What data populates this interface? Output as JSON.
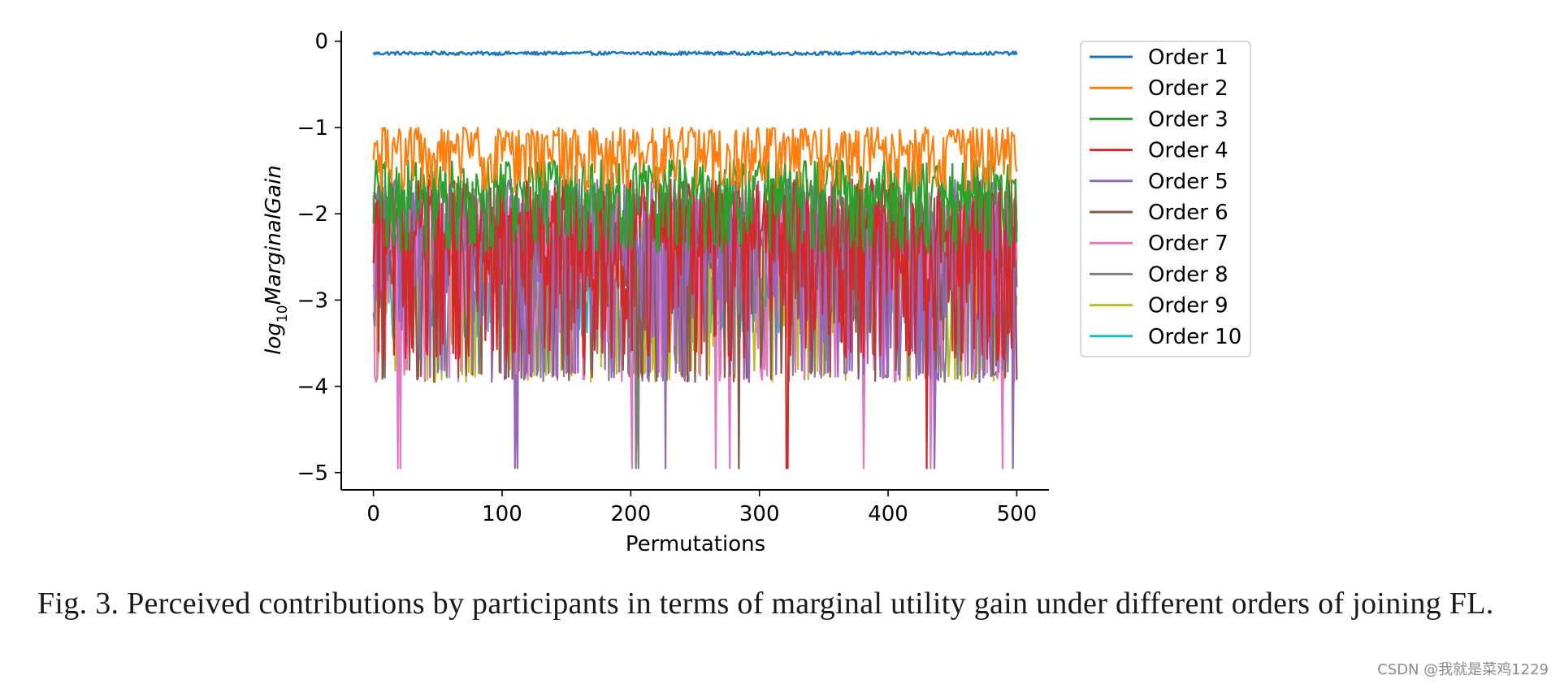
{
  "chart_data": {
    "type": "line",
    "title": "",
    "xlabel": "Permutations",
    "ylabel": {
      "base": "log",
      "subscript": "10",
      "rest": "MarginalGain"
    },
    "xlim": [
      -25,
      525
    ],
    "ylim": [
      -5.2,
      0.12
    ],
    "xticks": [
      0,
      100,
      200,
      300,
      400,
      500
    ],
    "xtick_labels": [
      "0",
      "100",
      "200",
      "300",
      "400",
      "500"
    ],
    "yticks": [
      0,
      -1,
      -2,
      -3,
      -4,
      -5
    ],
    "ytick_labels": [
      "0",
      "−1",
      "−2",
      "−3",
      "−4",
      "−5"
    ],
    "x_range": [
      0,
      500
    ],
    "n_points": 501,
    "legend_position": "upper-right-outside",
    "series": [
      {
        "name": "Order 1",
        "color": "#1f77b4",
        "mean": -0.14,
        "spread": 0.04,
        "min": -0.17,
        "max": -0.11,
        "drops": []
      },
      {
        "name": "Order 2",
        "color": "#ff7f0e",
        "mean": -1.35,
        "spread": 0.55,
        "min": -1.75,
        "max": -1.0,
        "drops": []
      },
      {
        "name": "Order 3",
        "color": "#2ca02c",
        "mean": -1.75,
        "spread": 0.6,
        "min": -2.45,
        "max": -1.38,
        "drops": []
      },
      {
        "name": "Order 4",
        "color": "#d62728",
        "mean": -2.0,
        "spread": 1.0,
        "min": -3.7,
        "max": -1.6,
        "drops": [
          [
            8,
            -3.7
          ],
          [
            321,
            -4.95
          ],
          [
            322,
            -4.95
          ],
          [
            430,
            -4.95
          ]
        ]
      },
      {
        "name": "Order 5",
        "color": "#9467bd",
        "mean": -2.2,
        "spread": 1.1,
        "min": -3.95,
        "max": -1.6,
        "drops": [
          [
            110,
            -4.95
          ],
          [
            112,
            -4.95
          ],
          [
            227,
            -4.95
          ],
          [
            436,
            -4.95
          ],
          [
            438,
            -3.9
          ],
          [
            497,
            -4.95
          ]
        ]
      },
      {
        "name": "Order 6",
        "color": "#8c564b",
        "mean": -2.45,
        "spread": 1.1,
        "min": -3.95,
        "max": -1.75,
        "drops": [
          [
            47,
            -3.95
          ],
          [
            284,
            -4.95
          ]
        ]
      },
      {
        "name": "Order 7",
        "color": "#e377c2",
        "mean": -2.4,
        "spread": 1.3,
        "min": -3.95,
        "max": -1.7,
        "drops": [
          [
            19,
            -4.95
          ],
          [
            21,
            -4.95
          ],
          [
            201,
            -4.95
          ],
          [
            266,
            -4.95
          ],
          [
            277,
            -4.95
          ],
          [
            381,
            -4.95
          ],
          [
            433,
            -4.95
          ],
          [
            489,
            -4.95
          ]
        ]
      },
      {
        "name": "Order 8",
        "color": "#7f7f7f",
        "mean": -2.6,
        "spread": 1.1,
        "min": -3.95,
        "max": -1.8,
        "drops": [
          [
            204,
            -4.95
          ],
          [
            206,
            -4.95
          ]
        ]
      },
      {
        "name": "Order 9",
        "color": "#bcbd22",
        "mean": -2.85,
        "spread": 1.0,
        "min": -3.95,
        "max": -2.0,
        "drops": []
      },
      {
        "name": "Order 10",
        "color": "#17becf",
        "mean": -3.05,
        "spread": 0.55,
        "min": -3.5,
        "max": -2.7,
        "drops": []
      }
    ]
  },
  "caption": "Fig. 3.  Perceived contributions by participants in terms of marginal utility gain under different orders of joining FL.",
  "watermark": "CSDN @我就是菜鸡1229"
}
